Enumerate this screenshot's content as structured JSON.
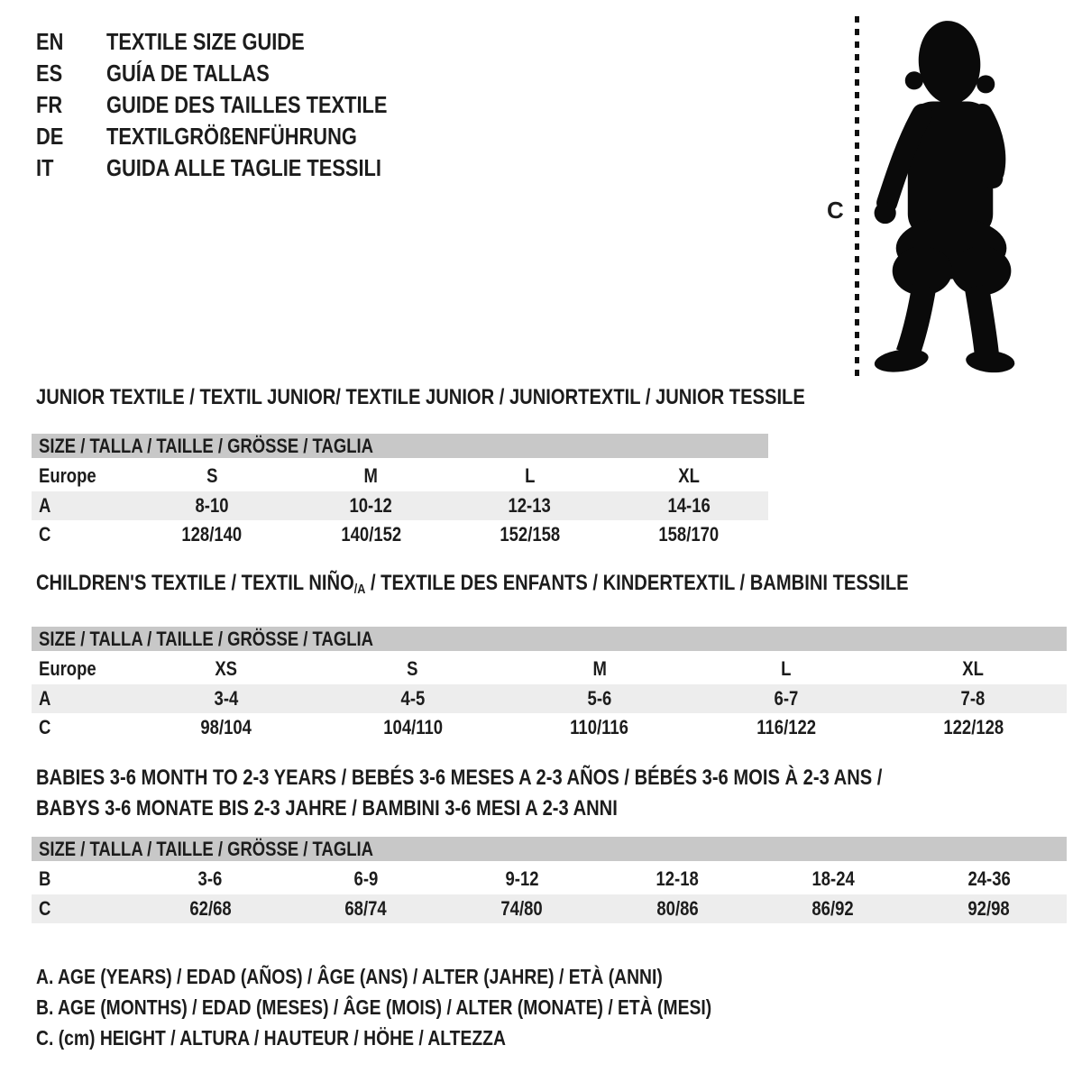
{
  "colors": {
    "header_band": "#c8c8c8",
    "shaded_row": "#ededed",
    "text": "#1c1c1c",
    "silhouette": "#0a0a0a"
  },
  "languages": [
    {
      "code": "EN",
      "label": "TEXTILE SIZE GUIDE"
    },
    {
      "code": "ES",
      "label": "GUÍA DE TALLAS"
    },
    {
      "code": "FR",
      "label": "GUIDE DES TAILLES TEXTILE"
    },
    {
      "code": "DE",
      "label": "TEXTILGRÖßENFÜHRUNG"
    },
    {
      "code": "IT",
      "label": "GUIDA ALLE TAGLIE TESSILI"
    }
  ],
  "figure": {
    "measure_label": "C",
    "silhouette": "toddler-standing"
  },
  "sections": [
    {
      "id": "junior",
      "title_lines": [
        [
          {
            "text": "JUNIOR TEXTILE / TEXTIL JUNIOR/ TEXTILE JUNIOR / JUNIORTEXTIL / JUNIOR TESSILE",
            "sub": false
          }
        ]
      ],
      "size_header": "SIZE / TALLA / TAILLE / GRÖSSE / TAGLIA",
      "rows": [
        {
          "label": "Europe",
          "values": [
            "S",
            "M",
            "L",
            "XL"
          ]
        },
        {
          "label": "A",
          "values": [
            "8-10",
            "10-12",
            "12-13",
            "14-16"
          ]
        },
        {
          "label": "C",
          "values": [
            "128/140",
            "140/152",
            "152/158",
            "158/170"
          ]
        }
      ]
    },
    {
      "id": "children",
      "title_lines": [
        [
          {
            "text": "CHILDREN'S TEXTILE / TEXTIL NIÑO",
            "sub": false
          },
          {
            "text": "/A",
            "sub": true
          },
          {
            "text": " / TEXTILE DES ENFANTS / KINDERTEXTIL / BAMBINI TESSILE",
            "sub": false
          }
        ]
      ],
      "size_header": "SIZE / TALLA / TAILLE / GRÖSSE / TAGLIA",
      "rows": [
        {
          "label": "Europe",
          "values": [
            "XS",
            "S",
            "M",
            "L",
            "XL"
          ]
        },
        {
          "label": "A",
          "values": [
            "3-4",
            "4-5",
            "5-6",
            "6-7",
            "7-8"
          ]
        },
        {
          "label": "C",
          "values": [
            "98/104",
            "104/110",
            "110/116",
            "116/122",
            "122/128"
          ]
        }
      ]
    },
    {
      "id": "babies",
      "title_lines": [
        [
          {
            "text": "BABIES 3-6 MONTH TO 2-3 YEARS / BEBÉS 3-6 MESES A 2-3 AÑOS / BÉBÉS 3-6 MOIS À 2-3 ANS /",
            "sub": false
          }
        ],
        [
          {
            "text": "BABYS 3-6 MONATE BIS 2-3 JAHRE / BAMBINI 3-6 MESI A 2-3 ANNI",
            "sub": false
          }
        ]
      ],
      "size_header": "SIZE / TALLA / TAILLE / GRÖSSE / TAGLIA",
      "rows": [
        {
          "label": "B",
          "values": [
            "3-6",
            "6-9",
            "9-12",
            "12-18",
            "18-24",
            "24-36"
          ]
        },
        {
          "label": "C",
          "values": [
            "62/68",
            "68/74",
            "74/80",
            "80/86",
            "86/92",
            "92/98"
          ]
        }
      ]
    }
  ],
  "legend": {
    "lines": [
      "A. AGE (YEARS) / EDAD (AÑOS) / ÂGE (ANS) / ALTER (JAHRE) / ETÀ (ANNI)",
      "B. AGE (MONTHS) / EDAD (MESES) / ÂGE (MOIS) / ALTER (MONATE) / ETÀ (MESI)",
      "C. (cm) HEIGHT / ALTURA / HAUTEUR / HÖHE / ALTEZZA"
    ]
  }
}
